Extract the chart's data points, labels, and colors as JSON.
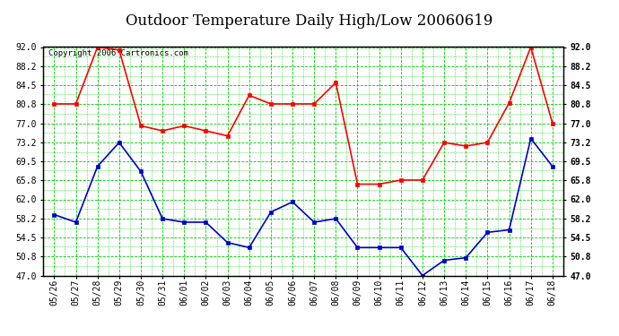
{
  "title": "Outdoor Temperature Daily High/Low 20060619",
  "copyright": "Copyright 2006 Cartronics.com",
  "x_labels": [
    "05/26",
    "05/27",
    "05/28",
    "05/29",
    "05/30",
    "05/31",
    "06/01",
    "06/02",
    "06/03",
    "06/04",
    "06/05",
    "06/06",
    "06/07",
    "06/08",
    "06/09",
    "06/10",
    "06/11",
    "06/12",
    "06/13",
    "06/14",
    "06/15",
    "06/16",
    "06/17",
    "06/18"
  ],
  "high_temps": [
    80.8,
    80.8,
    92.0,
    91.4,
    76.5,
    75.5,
    76.5,
    75.5,
    74.5,
    82.5,
    80.8,
    80.8,
    80.8,
    85.0,
    65.0,
    65.0,
    65.8,
    65.8,
    73.2,
    72.5,
    73.2,
    81.0,
    92.0,
    77.0
  ],
  "low_temps": [
    59.0,
    57.5,
    68.5,
    73.2,
    67.5,
    58.2,
    57.5,
    57.5,
    53.5,
    52.5,
    59.5,
    61.5,
    57.5,
    58.2,
    52.5,
    52.5,
    52.5,
    47.0,
    50.0,
    50.5,
    55.5,
    56.0,
    74.0,
    68.5
  ],
  "high_color": "#ff0000",
  "low_color": "#0000cc",
  "bg_color": "#ffffff",
  "plot_bg_color": "#ffffff",
  "grid_color": "#00cc00",
  "ymin": 47.0,
  "ymax": 92.0,
  "yticks": [
    47.0,
    50.8,
    54.5,
    58.2,
    62.0,
    65.8,
    69.5,
    73.2,
    77.0,
    80.8,
    84.5,
    88.2,
    92.0
  ],
  "marker": "s",
  "marker_size": 2.5,
  "linewidth": 1.2,
  "title_fontsize": 12,
  "tick_fontsize": 7,
  "copyright_fontsize": 6.5
}
